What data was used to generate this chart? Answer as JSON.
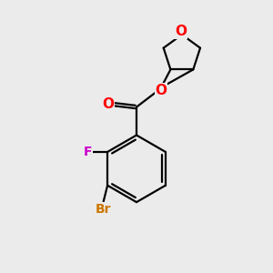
{
  "background_color": "#ebebeb",
  "bond_color": "#000000",
  "oxygen_color": "#ff0000",
  "bromine_color": "#cc7700",
  "fluorine_color": "#cc00cc",
  "line_width": 1.6,
  "figsize": [
    3.0,
    3.0
  ],
  "dpi": 100,
  "xlim": [
    0,
    10
  ],
  "ylim": [
    0,
    10
  ]
}
